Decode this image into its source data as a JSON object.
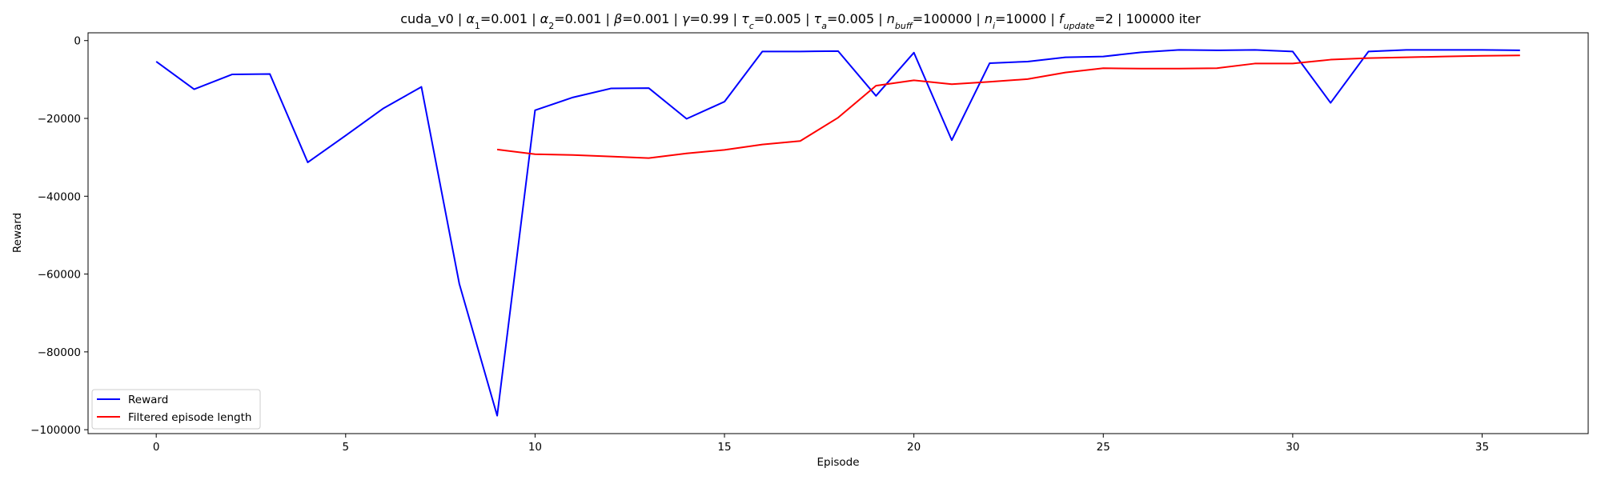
{
  "chart_data": {
    "type": "line",
    "title_parts": {
      "prefix": "cuda_v0 | ",
      "alpha1_sym": "α",
      "alpha1_sub": "1",
      "alpha1_val": "=0.001 | ",
      "alpha2_sym": "α",
      "alpha2_sub": "2",
      "alpha2_val": "=0.001 | ",
      "beta_sym": "β",
      "beta_val": "=0.001 | ",
      "gamma_sym": "γ",
      "gamma_val": "=0.99 | ",
      "tauc_sym": "τ",
      "tauc_sub": "c",
      "tauc_val": "=0.005 | ",
      "taua_sym": "τ",
      "taua_sub": "a",
      "taua_val": "=0.005 | ",
      "nbuff_sym": "n",
      "nbuff_sub": "buff",
      "nbuff_val": "=100000 | ",
      "ni_sym": "n",
      "ni_sub": "i",
      "ni_val": "=10000 | ",
      "fupdate_sym": "f",
      "fupdate_sub": "update",
      "fupdate_val": "=2 | 100000 iter"
    },
    "xlabel": "Episode",
    "ylabel": "Reward",
    "xlim": [
      -1.8,
      37.8
    ],
    "ylim": [
      -101000,
      2000
    ],
    "xticks": [
      0,
      5,
      10,
      15,
      20,
      25,
      30,
      35
    ],
    "yticks": [
      0,
      -20000,
      -40000,
      -60000,
      -80000,
      -100000
    ],
    "xtick_labels": [
      "0",
      "5",
      "10",
      "15",
      "20",
      "25",
      "30",
      "35"
    ],
    "ytick_labels": [
      "0",
      "−20000",
      "−40000",
      "−60000",
      "−80000",
      "−100000"
    ],
    "legend_position": "lower-left",
    "series": [
      {
        "name": "Reward",
        "color": "#0000ff",
        "x": [
          0,
          1,
          2,
          3,
          4,
          5,
          6,
          7,
          8,
          9,
          10,
          11,
          12,
          13,
          14,
          15,
          16,
          17,
          18,
          19,
          20,
          21,
          22,
          23,
          24,
          25,
          26,
          27,
          28,
          29,
          30,
          31,
          32,
          33,
          34,
          35,
          36
        ],
        "y": [
          -5400,
          -12500,
          -8700,
          -8600,
          -31300,
          -24400,
          -17400,
          -11900,
          -62500,
          -96400,
          -17900,
          -14600,
          -12300,
          -12200,
          -20100,
          -15700,
          -2800,
          -2800,
          -2700,
          -14200,
          -3100,
          -25600,
          -5800,
          -5400,
          -4300,
          -4100,
          -3000,
          -2400,
          -2500,
          -2400,
          -2800,
          -16000,
          -2800,
          -2400,
          -2400,
          -2400,
          -2500
        ]
      },
      {
        "name": "Filtered episode length",
        "color": "#ff0000",
        "x": [
          9,
          10,
          11,
          12,
          13,
          14,
          15,
          16,
          17,
          18,
          19,
          20,
          21,
          22,
          23,
          24,
          25,
          26,
          27,
          28,
          29,
          30,
          31,
          32,
          33,
          34,
          35,
          36
        ],
        "y": [
          -28000,
          -29200,
          -29400,
          -29800,
          -30200,
          -29000,
          -28100,
          -26700,
          -25800,
          -19800,
          -11600,
          -10200,
          -11200,
          -10600,
          -9900,
          -8200,
          -7100,
          -7200,
          -7200,
          -7100,
          -5900,
          -5900,
          -4900,
          -4500,
          -4300,
          -4100,
          -3900,
          -3800
        ]
      }
    ]
  }
}
